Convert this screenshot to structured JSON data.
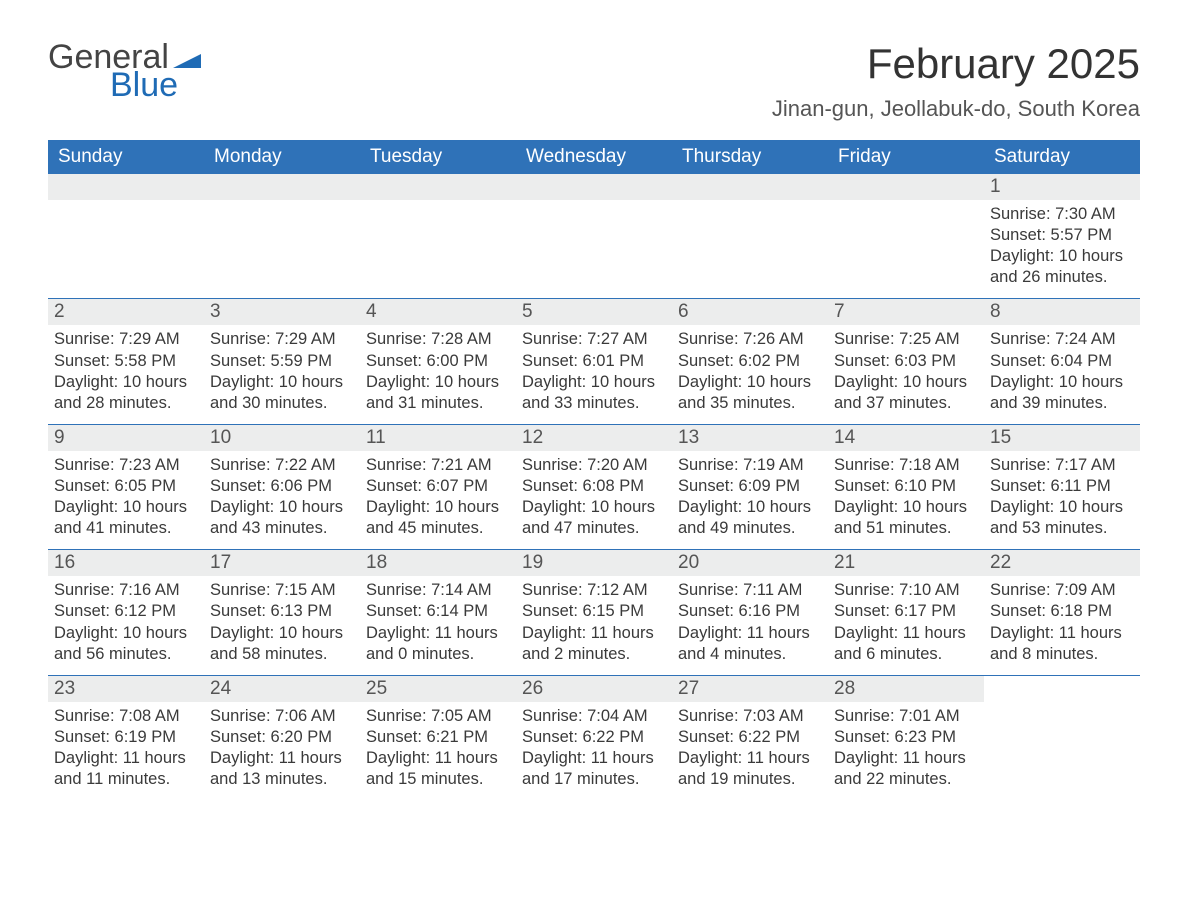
{
  "logo": {
    "general": "General",
    "blue": "Blue",
    "flag_color": "#1f6bb5"
  },
  "header": {
    "month_title": "February 2025",
    "location": "Jinan-gun, Jeollabuk-do, South Korea"
  },
  "calendar": {
    "header_bg": "#2f72b8",
    "daynum_bg": "#eceded",
    "rule_color": "#2f72b8",
    "weekdays": [
      "Sunday",
      "Monday",
      "Tuesday",
      "Wednesday",
      "Thursday",
      "Friday",
      "Saturday"
    ],
    "weeks": [
      [
        {
          "empty": true
        },
        {
          "empty": true
        },
        {
          "empty": true
        },
        {
          "empty": true
        },
        {
          "empty": true
        },
        {
          "empty": true
        },
        {
          "day": "1",
          "sunrise": "Sunrise: 7:30 AM",
          "sunset": "Sunset: 5:57 PM",
          "daylight1": "Daylight: 10 hours",
          "daylight2": "and 26 minutes."
        }
      ],
      [
        {
          "day": "2",
          "sunrise": "Sunrise: 7:29 AM",
          "sunset": "Sunset: 5:58 PM",
          "daylight1": "Daylight: 10 hours",
          "daylight2": "and 28 minutes."
        },
        {
          "day": "3",
          "sunrise": "Sunrise: 7:29 AM",
          "sunset": "Sunset: 5:59 PM",
          "daylight1": "Daylight: 10 hours",
          "daylight2": "and 30 minutes."
        },
        {
          "day": "4",
          "sunrise": "Sunrise: 7:28 AM",
          "sunset": "Sunset: 6:00 PM",
          "daylight1": "Daylight: 10 hours",
          "daylight2": "and 31 minutes."
        },
        {
          "day": "5",
          "sunrise": "Sunrise: 7:27 AM",
          "sunset": "Sunset: 6:01 PM",
          "daylight1": "Daylight: 10 hours",
          "daylight2": "and 33 minutes."
        },
        {
          "day": "6",
          "sunrise": "Sunrise: 7:26 AM",
          "sunset": "Sunset: 6:02 PM",
          "daylight1": "Daylight: 10 hours",
          "daylight2": "and 35 minutes."
        },
        {
          "day": "7",
          "sunrise": "Sunrise: 7:25 AM",
          "sunset": "Sunset: 6:03 PM",
          "daylight1": "Daylight: 10 hours",
          "daylight2": "and 37 minutes."
        },
        {
          "day": "8",
          "sunrise": "Sunrise: 7:24 AM",
          "sunset": "Sunset: 6:04 PM",
          "daylight1": "Daylight: 10 hours",
          "daylight2": "and 39 minutes."
        }
      ],
      [
        {
          "day": "9",
          "sunrise": "Sunrise: 7:23 AM",
          "sunset": "Sunset: 6:05 PM",
          "daylight1": "Daylight: 10 hours",
          "daylight2": "and 41 minutes."
        },
        {
          "day": "10",
          "sunrise": "Sunrise: 7:22 AM",
          "sunset": "Sunset: 6:06 PM",
          "daylight1": "Daylight: 10 hours",
          "daylight2": "and 43 minutes."
        },
        {
          "day": "11",
          "sunrise": "Sunrise: 7:21 AM",
          "sunset": "Sunset: 6:07 PM",
          "daylight1": "Daylight: 10 hours",
          "daylight2": "and 45 minutes."
        },
        {
          "day": "12",
          "sunrise": "Sunrise: 7:20 AM",
          "sunset": "Sunset: 6:08 PM",
          "daylight1": "Daylight: 10 hours",
          "daylight2": "and 47 minutes."
        },
        {
          "day": "13",
          "sunrise": "Sunrise: 7:19 AM",
          "sunset": "Sunset: 6:09 PM",
          "daylight1": "Daylight: 10 hours",
          "daylight2": "and 49 minutes."
        },
        {
          "day": "14",
          "sunrise": "Sunrise: 7:18 AM",
          "sunset": "Sunset: 6:10 PM",
          "daylight1": "Daylight: 10 hours",
          "daylight2": "and 51 minutes."
        },
        {
          "day": "15",
          "sunrise": "Sunrise: 7:17 AM",
          "sunset": "Sunset: 6:11 PM",
          "daylight1": "Daylight: 10 hours",
          "daylight2": "and 53 minutes."
        }
      ],
      [
        {
          "day": "16",
          "sunrise": "Sunrise: 7:16 AM",
          "sunset": "Sunset: 6:12 PM",
          "daylight1": "Daylight: 10 hours",
          "daylight2": "and 56 minutes."
        },
        {
          "day": "17",
          "sunrise": "Sunrise: 7:15 AM",
          "sunset": "Sunset: 6:13 PM",
          "daylight1": "Daylight: 10 hours",
          "daylight2": "and 58 minutes."
        },
        {
          "day": "18",
          "sunrise": "Sunrise: 7:14 AM",
          "sunset": "Sunset: 6:14 PM",
          "daylight1": "Daylight: 11 hours",
          "daylight2": "and 0 minutes."
        },
        {
          "day": "19",
          "sunrise": "Sunrise: 7:12 AM",
          "sunset": "Sunset: 6:15 PM",
          "daylight1": "Daylight: 11 hours",
          "daylight2": "and 2 minutes."
        },
        {
          "day": "20",
          "sunrise": "Sunrise: 7:11 AM",
          "sunset": "Sunset: 6:16 PM",
          "daylight1": "Daylight: 11 hours",
          "daylight2": "and 4 minutes."
        },
        {
          "day": "21",
          "sunrise": "Sunrise: 7:10 AM",
          "sunset": "Sunset: 6:17 PM",
          "daylight1": "Daylight: 11 hours",
          "daylight2": "and 6 minutes."
        },
        {
          "day": "22",
          "sunrise": "Sunrise: 7:09 AM",
          "sunset": "Sunset: 6:18 PM",
          "daylight1": "Daylight: 11 hours",
          "daylight2": "and 8 minutes."
        }
      ],
      [
        {
          "day": "23",
          "sunrise": "Sunrise: 7:08 AM",
          "sunset": "Sunset: 6:19 PM",
          "daylight1": "Daylight: 11 hours",
          "daylight2": "and 11 minutes."
        },
        {
          "day": "24",
          "sunrise": "Sunrise: 7:06 AM",
          "sunset": "Sunset: 6:20 PM",
          "daylight1": "Daylight: 11 hours",
          "daylight2": "and 13 minutes."
        },
        {
          "day": "25",
          "sunrise": "Sunrise: 7:05 AM",
          "sunset": "Sunset: 6:21 PM",
          "daylight1": "Daylight: 11 hours",
          "daylight2": "and 15 minutes."
        },
        {
          "day": "26",
          "sunrise": "Sunrise: 7:04 AM",
          "sunset": "Sunset: 6:22 PM",
          "daylight1": "Daylight: 11 hours",
          "daylight2": "and 17 minutes."
        },
        {
          "day": "27",
          "sunrise": "Sunrise: 7:03 AM",
          "sunset": "Sunset: 6:22 PM",
          "daylight1": "Daylight: 11 hours",
          "daylight2": "and 19 minutes."
        },
        {
          "day": "28",
          "sunrise": "Sunrise: 7:01 AM",
          "sunset": "Sunset: 6:23 PM",
          "daylight1": "Daylight: 11 hours",
          "daylight2": "and 22 minutes."
        },
        {
          "empty": true,
          "noBar": true
        }
      ]
    ]
  }
}
